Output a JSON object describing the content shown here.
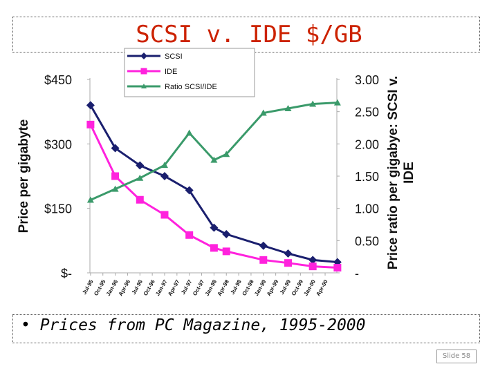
{
  "slide": {
    "title": "SCSI v. IDE $/GB",
    "bullet": "• Prices from PC Magazine, 1995-2000",
    "slide_number": "Slide 58"
  },
  "colors": {
    "title": "#cc2200",
    "scsi": "#1a1f6e",
    "ide": "#ff22dd",
    "ratio": "#3a9a6a"
  },
  "chart_data": {
    "type": "line",
    "title": "",
    "categories": [
      "Jul-95",
      "Oct-95",
      "Jan-96",
      "Apr-96",
      "Jul-96",
      "Oct-96",
      "Jan-97",
      "Apr-97",
      "Jul-97",
      "Oct-97",
      "Jan-98",
      "Apr-98",
      "Jul-98",
      "Oct-98",
      "Jan-99",
      "Apr-99",
      "Jul-99",
      "Oct-99",
      "Jan-00",
      "Apr-00"
    ],
    "ylabel": "Price per gigabyte",
    "y2label": "Price ratio per gigabye: SCSI v. IDE",
    "ylim": [
      0,
      450
    ],
    "y2lim": [
      0,
      3.0
    ],
    "yticks": [
      "$-",
      "$150",
      "$300",
      "$450"
    ],
    "y2ticks": [
      "-",
      "0.50",
      "1.00",
      "1.50",
      "2.00",
      "2.50",
      "3.00"
    ],
    "legend_position": "top",
    "series": [
      {
        "name": "SCSI",
        "axis": "left",
        "marker": "diamond",
        "points": [
          [
            0,
            390
          ],
          [
            2,
            290
          ],
          [
            4,
            250
          ],
          [
            6,
            225
          ],
          [
            8,
            192
          ],
          [
            10,
            105
          ],
          [
            11,
            90
          ],
          [
            14,
            63
          ],
          [
            16,
            45
          ],
          [
            18,
            30
          ],
          [
            20,
            25
          ]
        ]
      },
      {
        "name": "IDE",
        "axis": "left",
        "marker": "square",
        "points": [
          [
            0,
            345
          ],
          [
            2,
            225
          ],
          [
            4,
            170
          ],
          [
            6,
            135
          ],
          [
            8,
            88
          ],
          [
            10,
            58
          ],
          [
            11,
            50
          ],
          [
            14,
            30
          ],
          [
            16,
            23
          ],
          [
            18,
            15
          ],
          [
            20,
            12
          ]
        ]
      },
      {
        "name": "Ratio SCSI/IDE",
        "axis": "right",
        "marker": "triangle",
        "points": [
          [
            0,
            1.13
          ],
          [
            2,
            1.3
          ],
          [
            4,
            1.47
          ],
          [
            6,
            1.67
          ],
          [
            8,
            2.17
          ],
          [
            10,
            1.75
          ],
          [
            11,
            1.84
          ],
          [
            14,
            2.48
          ],
          [
            16,
            2.55
          ],
          [
            18,
            2.62
          ],
          [
            20,
            2.64
          ]
        ]
      }
    ]
  }
}
